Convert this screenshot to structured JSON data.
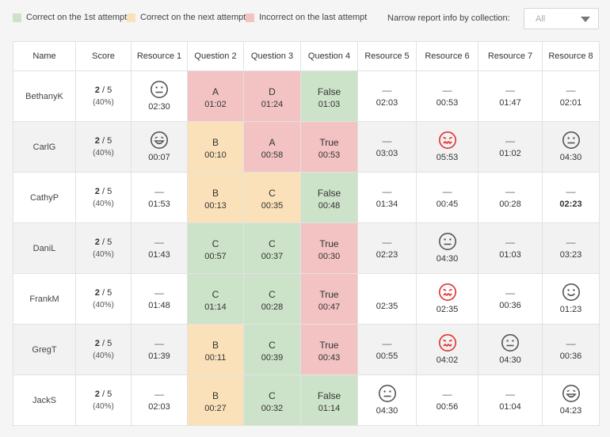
{
  "legend": {
    "first": {
      "label": "Correct on the 1st attempt",
      "color": "#cde3c9"
    },
    "next": {
      "label": "Correct on the next attempt",
      "color": "#fbe1b9"
    },
    "wrong": {
      "label": "Incorrect on the last attempt",
      "color": "#f3c3c3"
    }
  },
  "filter": {
    "label": "Narrow report info by collection:",
    "value": "All"
  },
  "columns": [
    "Name",
    "Score",
    "Resource 1",
    "Question 2",
    "Question 3",
    "Question 4",
    "Resource 5",
    "Resource 6",
    "Resource 7",
    "Resource 8"
  ],
  "rows": [
    {
      "name": "BethanyK",
      "score": "2",
      "total": "5",
      "pct": "(40%)",
      "cells": [
        {
          "kind": "resource",
          "icon": "neutral-face-icon",
          "time": "02:30"
        },
        {
          "kind": "question",
          "status": "wrong",
          "answer": "A",
          "time": "01:02"
        },
        {
          "kind": "question",
          "status": "wrong",
          "answer": "D",
          "time": "01:24"
        },
        {
          "kind": "question",
          "status": "first",
          "answer": "False",
          "time": "01:03"
        },
        {
          "kind": "resource",
          "icon": "dash",
          "time": "02:03"
        },
        {
          "kind": "resource",
          "icon": "dash",
          "time": "00:53"
        },
        {
          "kind": "resource",
          "icon": "dash",
          "time": "01:47"
        },
        {
          "kind": "resource",
          "icon": "dash",
          "time": "02:01"
        }
      ]
    },
    {
      "name": "CarlG",
      "score": "2",
      "total": "5",
      "pct": "(40%)",
      "cells": [
        {
          "kind": "resource",
          "icon": "tongue-face-icon",
          "time": "00:07"
        },
        {
          "kind": "question",
          "status": "next",
          "answer": "B",
          "time": "00:10"
        },
        {
          "kind": "question",
          "status": "wrong",
          "answer": "A",
          "time": "00:58"
        },
        {
          "kind": "question",
          "status": "wrong",
          "answer": "True",
          "time": "00:53"
        },
        {
          "kind": "resource",
          "icon": "dash",
          "time": "03:03"
        },
        {
          "kind": "resource",
          "icon": "confused-face-icon",
          "time": "05:53"
        },
        {
          "kind": "resource",
          "icon": "dash",
          "time": "01:02"
        },
        {
          "kind": "resource",
          "icon": "neutral-face-icon",
          "time": "04:30"
        }
      ]
    },
    {
      "name": "CathyP",
      "score": "2",
      "total": "5",
      "pct": "(40%)",
      "cells": [
        {
          "kind": "resource",
          "icon": "dash",
          "time": "01:53"
        },
        {
          "kind": "question",
          "status": "next",
          "answer": "B",
          "time": "00:13"
        },
        {
          "kind": "question",
          "status": "next",
          "answer": "C",
          "time": "00:35"
        },
        {
          "kind": "question",
          "status": "first",
          "answer": "False",
          "time": "00:48"
        },
        {
          "kind": "resource",
          "icon": "dash",
          "time": "01:34"
        },
        {
          "kind": "resource",
          "icon": "dash",
          "time": "00:45"
        },
        {
          "kind": "resource",
          "icon": "dash",
          "time": "00:28"
        },
        {
          "kind": "resource",
          "icon": "dash",
          "time": "02:23",
          "bold": true
        }
      ]
    },
    {
      "name": "DaniL",
      "score": "2",
      "total": "5",
      "pct": "(40%)",
      "cells": [
        {
          "kind": "resource",
          "icon": "dash",
          "time": "01:43"
        },
        {
          "kind": "question",
          "status": "first",
          "answer": "C",
          "time": "00:57"
        },
        {
          "kind": "question",
          "status": "first",
          "answer": "C",
          "time": "00:37"
        },
        {
          "kind": "question",
          "status": "wrong",
          "answer": "True",
          "time": "00:30"
        },
        {
          "kind": "resource",
          "icon": "dash",
          "time": "02:23"
        },
        {
          "kind": "resource",
          "icon": "neutral-face-icon",
          "time": "04:30"
        },
        {
          "kind": "resource",
          "icon": "dash",
          "time": "01:03"
        },
        {
          "kind": "resource",
          "icon": "dash",
          "time": "03:23"
        }
      ]
    },
    {
      "name": "FrankM",
      "score": "2",
      "total": "5",
      "pct": "(40%)",
      "cells": [
        {
          "kind": "resource",
          "icon": "dash",
          "time": "01:48"
        },
        {
          "kind": "question",
          "status": "first",
          "answer": "C",
          "time": "01:14"
        },
        {
          "kind": "question",
          "status": "first",
          "answer": "C",
          "time": "00:28"
        },
        {
          "kind": "question",
          "status": "wrong",
          "answer": "True",
          "time": "00:47"
        },
        {
          "kind": "resource",
          "icon": "none",
          "time": "02:35"
        },
        {
          "kind": "resource",
          "icon": "confused-face-icon",
          "time": "02:35"
        },
        {
          "kind": "resource",
          "icon": "dash",
          "time": "00:36"
        },
        {
          "kind": "resource",
          "icon": "smile-face-icon",
          "time": "01:23"
        }
      ]
    },
    {
      "name": "GregT",
      "score": "2",
      "total": "5",
      "pct": "(40%)",
      "cells": [
        {
          "kind": "resource",
          "icon": "dash",
          "time": "01:39"
        },
        {
          "kind": "question",
          "status": "next",
          "answer": "B",
          "time": "00:11"
        },
        {
          "kind": "question",
          "status": "first",
          "answer": "C",
          "time": "00:39"
        },
        {
          "kind": "question",
          "status": "wrong",
          "answer": "True",
          "time": "00:43"
        },
        {
          "kind": "resource",
          "icon": "dash",
          "time": "00:55"
        },
        {
          "kind": "resource",
          "icon": "confused-face-icon",
          "time": "04:02"
        },
        {
          "kind": "resource",
          "icon": "neutral-face-icon",
          "time": "04:30"
        },
        {
          "kind": "resource",
          "icon": "dash",
          "time": "00:36"
        }
      ]
    },
    {
      "name": "JackS",
      "score": "2",
      "total": "5",
      "pct": "(40%)",
      "cells": [
        {
          "kind": "resource",
          "icon": "dash",
          "time": "02:03"
        },
        {
          "kind": "question",
          "status": "next",
          "answer": "B",
          "time": "00:27"
        },
        {
          "kind": "question",
          "status": "first",
          "answer": "C",
          "time": "00:32"
        },
        {
          "kind": "question",
          "status": "first",
          "answer": "False",
          "time": "01:14"
        },
        {
          "kind": "resource",
          "icon": "neutral-face-icon",
          "time": "04:30"
        },
        {
          "kind": "resource",
          "icon": "dash",
          "time": "00:56"
        },
        {
          "kind": "resource",
          "icon": "dash",
          "time": "01:04"
        },
        {
          "kind": "resource",
          "icon": "tongue-face-icon",
          "time": "04:23"
        }
      ]
    }
  ]
}
